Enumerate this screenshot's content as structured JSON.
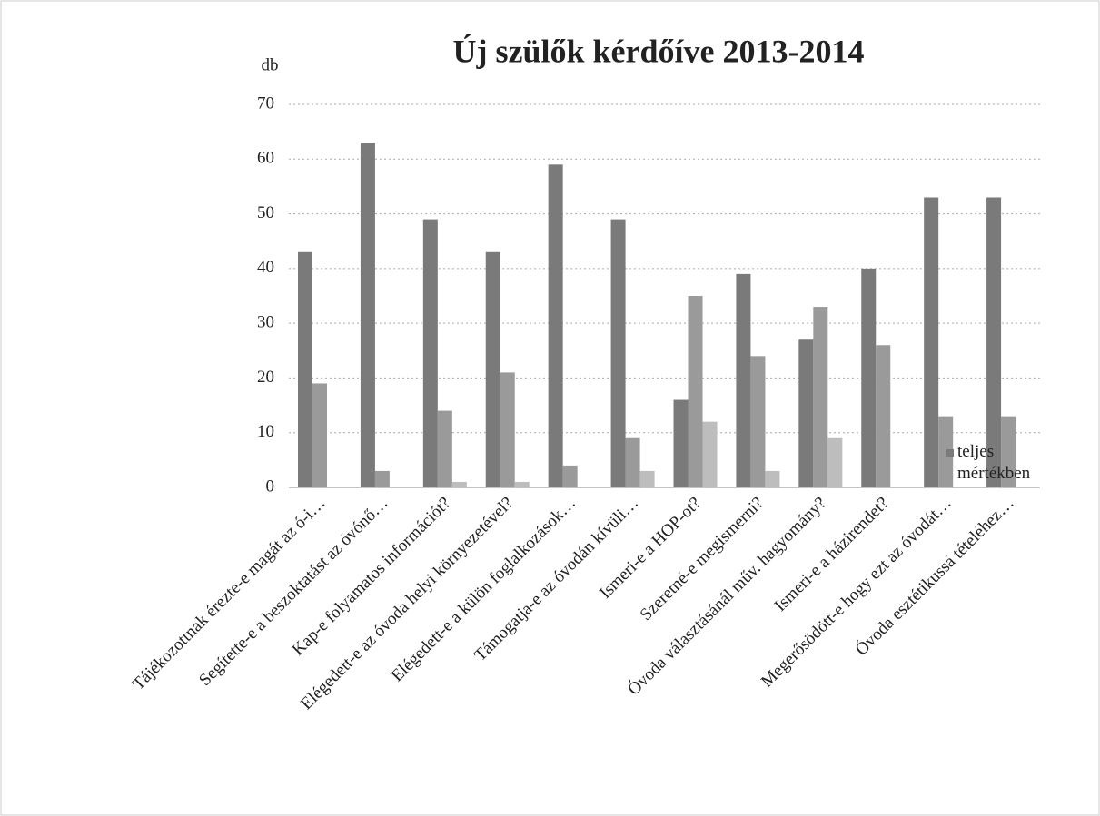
{
  "chart_data": {
    "type": "bar",
    "title": "Új szülők kérdőíve 2013-2014",
    "y_label": "db",
    "categories": [
      "Tájékozottnak érezte-e magát az ó-i…",
      "Segítette-e a beszoktatást az óvónő…",
      "Kap-e folyamatos információt?",
      "Elégedett-e az óvoda helyi környezetével?",
      "Elégedett-e a külön foglalkozások…",
      "Támogatja-e az óvodán kívüli…",
      "Ismeri-e a HOP-ot?",
      "Szeretné-e megismerni?",
      "Óvoda választásánál műv. hagyomány?",
      "Ismeri-e a házirendet?",
      "Megerősödött-e hogy ezt az óvodát…",
      "Óvoda esztétikussá tételéhez…"
    ],
    "series": [
      {
        "name": "teljes mértékben",
        "color": "#7a7a7a",
        "values": [
          43,
          63,
          49,
          43,
          59,
          49,
          16,
          39,
          27,
          40,
          53,
          53
        ]
      },
      {
        "color": "#9a9a9a",
        "values": [
          19,
          3,
          14,
          21,
          4,
          9,
          35,
          24,
          33,
          26,
          13,
          13
        ]
      },
      {
        "color": "#bdbdbd",
        "values": [
          0,
          0,
          1,
          1,
          0,
          3,
          12,
          3,
          9,
          0,
          0,
          0
        ]
      }
    ],
    "ylim": [
      0,
      70
    ],
    "yticks": [
      0,
      10,
      20,
      30,
      40,
      50,
      60,
      70
    ],
    "grid": true,
    "legend": "right"
  }
}
